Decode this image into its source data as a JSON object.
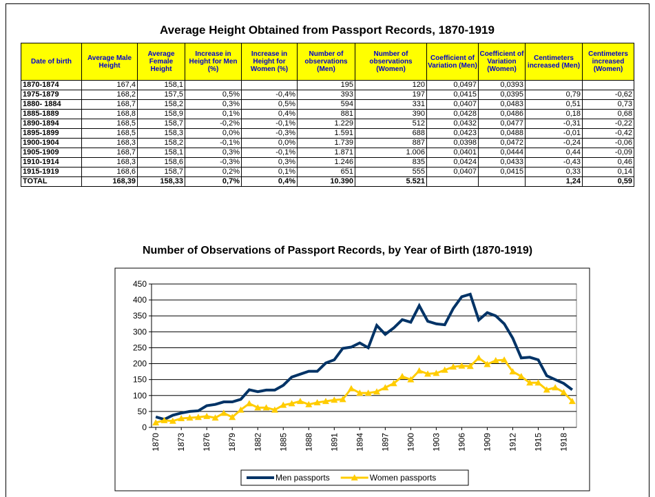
{
  "table": {
    "title": "Average Height Obtained from Passport Records, 1870-1919",
    "headers": [
      "Date of birth",
      "Average Male Height",
      "Average Female Height",
      "Increase in Height for Men (%)",
      "Increase in Height for Women (%)",
      "Number of observations (Men)",
      "Number of observations (Women)",
      "Coefficient of Variation (Men)",
      "Coefficient of Variation (Women)",
      "Centimeters increased (Men)",
      "Centimeters increased (Women)"
    ],
    "rows": [
      [
        "1870-1874",
        "167,4",
        "158,1",
        null,
        null,
        "195",
        "120",
        "0,0497",
        "0,0393",
        null,
        null
      ],
      [
        "1975-1879",
        "168,2",
        "157,5",
        "0,5%",
        "-0,4%",
        "393",
        "197",
        "0,0415",
        "0,0395",
        "0,79",
        "-0,62"
      ],
      [
        "1880- 1884",
        "168,7",
        "158,2",
        "0,3%",
        "0,5%",
        "594",
        "331",
        "0,0407",
        "0,0483",
        "0,51",
        "0,73"
      ],
      [
        "1885-1889",
        "168,8",
        "158,9",
        "0,1%",
        "0,4%",
        "881",
        "390",
        "0,0428",
        "0,0486",
        "0,18",
        "0,68"
      ],
      [
        "1890-1894",
        "168,5",
        "158,7",
        "-0,2%",
        "-0,1%",
        "1.229",
        "512",
        "0,0432",
        "0,0477",
        "-0,31",
        "-0,22"
      ],
      [
        "1895-1899",
        "168,5",
        "158,3",
        "0,0%",
        "-0,3%",
        "1.591",
        "688",
        "0,0423",
        "0,0488",
        "-0,01",
        "-0,42"
      ],
      [
        "1900-1904",
        "168,3",
        "158,2",
        "-0,1%",
        "0,0%",
        "1.739",
        "887",
        "0,0398",
        "0,0472",
        "-0,24",
        "-0,06"
      ],
      [
        "1905-1909",
        "168,7",
        "158,1",
        "0,3%",
        "-0,1%",
        "1.871",
        "1.006",
        "0,0401",
        "0,0444",
        "0,44",
        "-0,09"
      ],
      [
        "1910-1914",
        "168,3",
        "158,6",
        "-0,3%",
        "0,3%",
        "1.246",
        "835",
        "0,0424",
        "0,0433",
        "-0,43",
        "0,46"
      ],
      [
        "1915-1919",
        "168,6",
        "158,7",
        "0,2%",
        "0,1%",
        "651",
        "555",
        "0,0407",
        "0,0415",
        "0,33",
        "0,14"
      ],
      [
        "TOTAL",
        "168,39",
        "158,33",
        "0,7%",
        "0,4%",
        "10.390",
        "5.521",
        null,
        null,
        "1,24",
        "0,59"
      ]
    ]
  },
  "chart_data": {
    "type": "line",
    "title": "Number of Observations of Passport Records, by Year of Birth (1870-1919)",
    "x": [
      1870,
      1871,
      1872,
      1873,
      1874,
      1875,
      1876,
      1877,
      1878,
      1879,
      1880,
      1881,
      1882,
      1883,
      1884,
      1885,
      1886,
      1887,
      1888,
      1889,
      1890,
      1891,
      1892,
      1893,
      1894,
      1895,
      1896,
      1897,
      1898,
      1899,
      1900,
      1901,
      1902,
      1903,
      1904,
      1905,
      1906,
      1907,
      1908,
      1909,
      1910,
      1911,
      1912,
      1913,
      1914,
      1915,
      1916,
      1917,
      1918,
      1919
    ],
    "xticks": [
      1870,
      1873,
      1876,
      1879,
      1882,
      1885,
      1888,
      1891,
      1894,
      1897,
      1900,
      1903,
      1906,
      1909,
      1912,
      1915,
      1918
    ],
    "ylim": [
      0,
      450
    ],
    "yticks": [
      0,
      50,
      100,
      150,
      200,
      250,
      300,
      350,
      400,
      450
    ],
    "grid": true,
    "legend": "bottom",
    "series": [
      {
        "name": "Men passports",
        "color": "#003366",
        "values": [
          33,
          25,
          38,
          45,
          50,
          52,
          68,
          72,
          80,
          80,
          88,
          118,
          112,
          117,
          117,
          132,
          158,
          167,
          176,
          176,
          202,
          212,
          248,
          252,
          265,
          250,
          320,
          292,
          312,
          338,
          330,
          382,
          333,
          325,
          322,
          373,
          410,
          418,
          337,
          360,
          350,
          325,
          280,
          218,
          220,
          212,
          162,
          150,
          138,
          118
        ]
      },
      {
        "name": "Women passports",
        "color": "#ffcc00",
        "values": [
          15,
          22,
          20,
          28,
          30,
          32,
          35,
          30,
          45,
          32,
          55,
          75,
          62,
          62,
          55,
          70,
          75,
          82,
          72,
          78,
          82,
          86,
          88,
          122,
          108,
          108,
          112,
          125,
          138,
          160,
          150,
          178,
          168,
          170,
          180,
          190,
          193,
          192,
          218,
          198,
          210,
          212,
          175,
          160,
          140,
          140,
          118,
          125,
          110,
          82
        ]
      }
    ]
  }
}
